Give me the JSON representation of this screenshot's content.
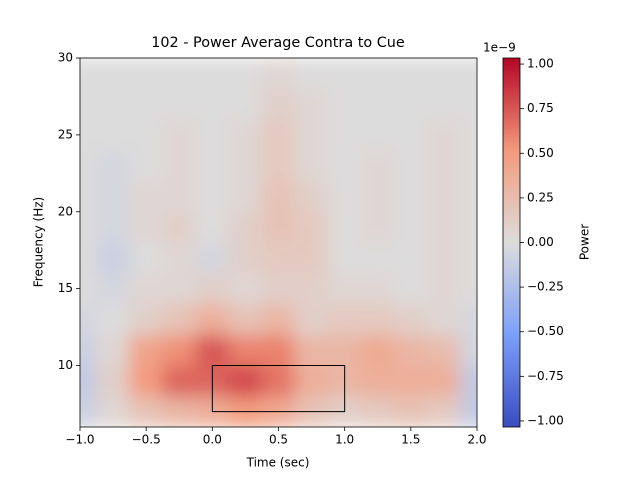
{
  "chart_data": {
    "type": "heatmap",
    "title": "102 - Power Average Contra to Cue",
    "x_label": "Time (sec)",
    "y_label": "Frequency (Hz)",
    "x": [
      -1,
      -0.75,
      -0.5,
      -0.25,
      0,
      0.25,
      0.5,
      0.75,
      1,
      1.25,
      1.5,
      1.75,
      2
    ],
    "y": [
      7,
      9,
      11,
      13,
      15,
      17,
      19,
      21,
      23,
      25,
      27,
      29
    ],
    "z": [
      [
        -0.1,
        0.05,
        0.2,
        0.3,
        0.35,
        0.5,
        0.4,
        0.2,
        0.1,
        0.15,
        0.2,
        0.15,
        -0.15
      ],
      [
        -0.15,
        0.1,
        0.5,
        0.7,
        0.7,
        0.8,
        0.65,
        0.35,
        0.3,
        0.35,
        0.35,
        0.35,
        -0.15
      ],
      [
        -0.1,
        0.05,
        0.45,
        0.55,
        0.75,
        0.6,
        0.6,
        0.3,
        0.3,
        0.4,
        0.3,
        0.25,
        -0.05
      ],
      [
        -0.05,
        0,
        0.1,
        0.2,
        0.35,
        0.2,
        0.3,
        0.1,
        0.15,
        0.15,
        0.1,
        0.05,
        -0.05
      ],
      [
        0,
        -0.05,
        0.05,
        0.05,
        0.1,
        0.05,
        0.1,
        0.1,
        0.05,
        0.05,
        0,
        0.05,
        0
      ],
      [
        0,
        -0.1,
        0,
        0.05,
        -0.05,
        0.1,
        0.15,
        0.15,
        0,
        0,
        0,
        0.05,
        0
      ],
      [
        0,
        -0.05,
        0.05,
        0.1,
        0,
        0.1,
        0.2,
        0.15,
        0,
        0.05,
        0,
        0.05,
        0
      ],
      [
        0,
        -0.05,
        0.05,
        0.05,
        0,
        0.05,
        0.2,
        0.1,
        0,
        0.05,
        0,
        0.05,
        0
      ],
      [
        0,
        -0.05,
        0,
        0.05,
        0,
        0.05,
        0.15,
        0.05,
        0,
        0.05,
        0,
        0.05,
        0
      ],
      [
        0,
        0,
        0,
        0.05,
        0,
        0.05,
        0.15,
        0.05,
        0,
        0,
        0,
        0.05,
        0
      ],
      [
        0,
        0,
        0,
        0,
        0,
        0,
        0.1,
        0.05,
        0,
        0,
        0,
        0,
        0
      ],
      [
        0,
        0,
        0,
        0,
        0,
        0,
        0.05,
        0,
        0,
        0,
        0,
        0,
        0
      ]
    ],
    "xlim": [
      -1,
      2
    ],
    "ylim": [
      6,
      30
    ],
    "xticks": [
      {
        "value": -1,
        "label": "−1.0"
      },
      {
        "value": -0.5,
        "label": "−0.5"
      },
      {
        "value": 0,
        "label": "0.0"
      },
      0.5,
      {
        "value": 1,
        "label": "1.0"
      },
      1.5,
      {
        "value": 2,
        "label": "2.0"
      }
    ],
    "yticks": [
      10,
      15,
      20,
      25,
      30
    ],
    "colormap": "coolwarm",
    "colorbar_label": "Power",
    "colorbar_offset": "1e−9",
    "clim": [
      -1.034,
      1.034
    ],
    "cticks": [
      {
        "value": -1,
        "label": "−1.00"
      },
      {
        "value": -0.75,
        "label": "−0.75"
      },
      {
        "value": -0.5,
        "label": "−0.50"
      },
      {
        "value": -0.25,
        "label": "−0.25"
      },
      {
        "value": 0,
        "label": "0.00"
      },
      0.25,
      {
        "value": 0.5,
        "label": "0.50"
      },
      0.75,
      {
        "value": 1,
        "label": "1.00"
      }
    ],
    "box": {
      "x": [
        0,
        1
      ],
      "y": [
        7,
        10
      ]
    }
  }
}
